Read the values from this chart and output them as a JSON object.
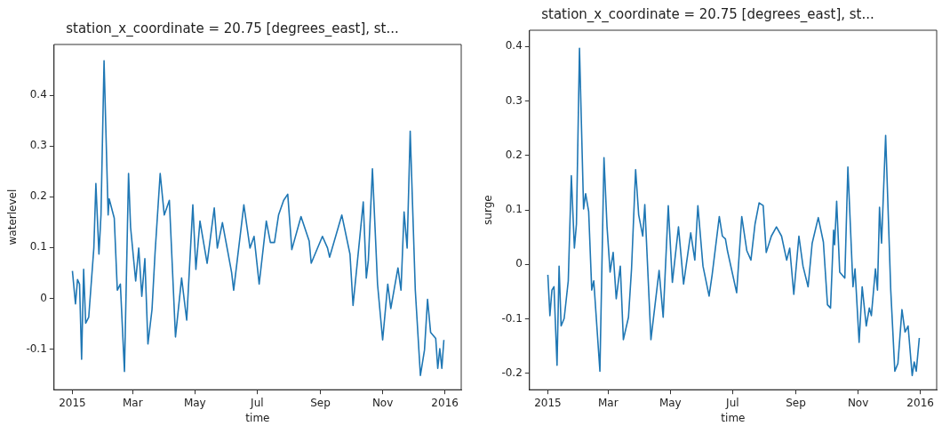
{
  "chart_data": [
    {
      "type": "line",
      "title": "station_x_coordinate = 20.75 [degrees_east], st...",
      "xlabel": "time",
      "ylabel": "waterlevel",
      "xlim": [
        "2014-12-14",
        "2016-01-17"
      ],
      "ylim": [
        -0.18,
        0.5
      ],
      "xticks": [
        {
          "value": "2015-01-01",
          "label": "2015"
        },
        {
          "value": "2015-03-01",
          "label": "Mar"
        },
        {
          "value": "2015-05-01",
          "label": "May"
        },
        {
          "value": "2015-07-01",
          "label": "Jul"
        },
        {
          "value": "2015-09-01",
          "label": "Sep"
        },
        {
          "value": "2015-11-01",
          "label": "Nov"
        },
        {
          "value": "2016-01-01",
          "label": "2016"
        }
      ],
      "yticks": [
        -0.1,
        0.0,
        0.1,
        0.2,
        0.3,
        0.4
      ],
      "grid": false,
      "legend": false,
      "marker": "none",
      "line_style": "solid",
      "series": [
        {
          "color": "#1f77b4",
          "x": [
            "2015-01-01",
            "2015-01-04",
            "2015-01-06",
            "2015-01-08",
            "2015-01-10",
            "2015-01-12",
            "2015-01-14",
            "2015-01-17",
            "2015-01-22",
            "2015-01-24",
            "2015-01-27",
            "2015-01-29",
            "2015-02-01",
            "2015-02-05",
            "2015-02-06",
            "2015-02-11",
            "2015-02-14",
            "2015-02-17",
            "2015-02-21",
            "2015-02-25",
            "2015-02-27",
            "2015-03-04",
            "2015-03-07",
            "2015-03-10",
            "2015-03-13",
            "2015-03-16",
            "2015-03-20",
            "2015-03-23",
            "2015-03-28",
            "2015-04-01",
            "2015-04-06",
            "2015-04-12",
            "2015-04-18",
            "2015-04-23",
            "2015-04-29",
            "2015-05-02",
            "2015-05-06",
            "2015-05-13",
            "2015-05-20",
            "2015-05-23",
            "2015-05-28",
            "2015-06-06",
            "2015-06-08",
            "2015-06-18",
            "2015-06-24",
            "2015-06-28",
            "2015-07-03",
            "2015-07-10",
            "2015-07-14",
            "2015-07-18",
            "2015-07-22",
            "2015-07-27",
            "2015-07-31",
            "2015-08-04",
            "2015-08-13",
            "2015-08-21",
            "2015-08-23",
            "2015-09-03",
            "2015-09-08",
            "2015-09-10",
            "2015-09-22",
            "2015-09-30",
            "2015-10-03",
            "2015-10-10",
            "2015-10-13",
            "2015-10-16",
            "2015-10-18",
            "2015-10-22",
            "2015-10-27",
            "2015-11-01",
            "2015-11-06",
            "2015-11-09",
            "2015-11-16",
            "2015-11-19",
            "2015-11-22",
            "2015-11-25",
            "2015-11-28",
            "2015-12-03",
            "2015-12-08",
            "2015-12-12",
            "2015-12-15",
            "2015-12-18",
            "2015-12-23",
            "2015-12-25",
            "2015-12-27",
            "2015-12-29",
            "2015-12-31"
          ],
          "values": [
            0.054,
            -0.011,
            0.037,
            0.028,
            -0.12,
            0.057,
            -0.049,
            -0.037,
            0.099,
            0.226,
            0.087,
            0.164,
            0.468,
            0.164,
            0.196,
            0.158,
            0.016,
            0.028,
            -0.144,
            0.246,
            0.14,
            0.034,
            0.099,
            0.004,
            0.078,
            -0.09,
            -0.022,
            0.09,
            0.246,
            0.164,
            0.193,
            -0.076,
            0.04,
            -0.043,
            0.184,
            0.057,
            0.152,
            0.069,
            0.178,
            0.099,
            0.149,
            0.051,
            0.016,
            0.184,
            0.099,
            0.122,
            0.028,
            0.152,
            0.11,
            0.11,
            0.164,
            0.193,
            0.205,
            0.096,
            0.161,
            0.113,
            0.069,
            0.122,
            0.099,
            0.081,
            0.164,
            0.087,
            -0.014,
            0.128,
            0.19,
            0.04,
            0.075,
            0.255,
            0.028,
            -0.082,
            0.028,
            -0.02,
            0.06,
            0.016,
            0.17,
            0.099,
            0.329,
            0.016,
            -0.152,
            -0.102,
            -0.002,
            -0.067,
            -0.079,
            -0.138,
            -0.099,
            -0.138,
            -0.082
          ]
        }
      ]
    },
    {
      "type": "line",
      "title": "station_x_coordinate = 20.75 [degrees_east], st...",
      "xlabel": "time",
      "ylabel": "surge",
      "xlim": [
        "2014-12-14",
        "2016-01-17"
      ],
      "ylim": [
        -0.23,
        0.43
      ],
      "xticks": [
        {
          "value": "2015-01-01",
          "label": "2015"
        },
        {
          "value": "2015-03-01",
          "label": "Mar"
        },
        {
          "value": "2015-05-01",
          "label": "May"
        },
        {
          "value": "2015-07-01",
          "label": "Jul"
        },
        {
          "value": "2015-09-01",
          "label": "Sep"
        },
        {
          "value": "2015-11-01",
          "label": "Nov"
        },
        {
          "value": "2016-01-01",
          "label": "2016"
        }
      ],
      "yticks": [
        -0.2,
        -0.1,
        0.0,
        0.1,
        0.2,
        0.3,
        0.4
      ],
      "grid": false,
      "legend": false,
      "marker": "none",
      "line_style": "solid",
      "series": [
        {
          "color": "#1f77b4",
          "x": [
            "2015-01-01",
            "2015-01-03",
            "2015-01-05",
            "2015-01-07",
            "2015-01-10",
            "2015-01-12",
            "2015-01-14",
            "2015-01-17",
            "2015-01-21",
            "2015-01-24",
            "2015-01-27",
            "2015-01-29",
            "2015-02-01",
            "2015-02-05",
            "2015-02-07",
            "2015-02-10",
            "2015-02-13",
            "2015-02-15",
            "2015-02-21",
            "2015-02-25",
            "2015-02-28",
            "2015-03-03",
            "2015-03-06",
            "2015-03-09",
            "2015-03-13",
            "2015-03-16",
            "2015-03-21",
            "2015-03-24",
            "2015-03-28",
            "2015-03-31",
            "2015-04-04",
            "2015-04-06",
            "2015-04-12",
            "2015-04-20",
            "2015-04-24",
            "2015-04-29",
            "2015-05-03",
            "2015-05-09",
            "2015-05-14",
            "2015-05-21",
            "2015-05-25",
            "2015-05-28",
            "2015-06-02",
            "2015-06-08",
            "2015-06-11",
            "2015-06-18",
            "2015-06-21",
            "2015-06-24",
            "2015-06-26",
            "2015-07-05",
            "2015-07-10",
            "2015-07-15",
            "2015-07-19",
            "2015-07-23",
            "2015-07-27",
            "2015-07-31",
            "2015-08-03",
            "2015-08-08",
            "2015-08-13",
            "2015-08-18",
            "2015-08-23",
            "2015-08-26",
            "2015-08-30",
            "2015-09-04",
            "2015-09-08",
            "2015-09-13",
            "2015-09-17",
            "2015-09-23",
            "2015-09-28",
            "2015-10-02",
            "2015-10-05",
            "2015-10-08",
            "2015-10-09",
            "2015-10-11",
            "2015-10-14",
            "2015-10-19",
            "2015-10-22",
            "2015-10-27",
            "2015-10-29",
            "2015-11-02",
            "2015-11-05",
            "2015-11-09",
            "2015-11-12",
            "2015-11-14",
            "2015-11-18",
            "2015-11-20",
            "2015-11-22",
            "2015-11-24",
            "2015-11-28",
            "2015-12-03",
            "2015-12-07",
            "2015-12-10",
            "2015-12-14",
            "2015-12-17",
            "2015-12-20",
            "2015-12-24",
            "2015-12-26",
            "2015-12-28",
            "2015-12-31"
          ],
          "values": [
            -0.019,
            -0.094,
            -0.047,
            -0.041,
            -0.185,
            -0.003,
            -0.113,
            -0.099,
            -0.03,
            0.163,
            0.03,
            0.074,
            0.397,
            0.102,
            0.13,
            0.097,
            -0.047,
            -0.03,
            -0.196,
            0.196,
            0.069,
            -0.014,
            0.022,
            -0.063,
            -0.003,
            -0.138,
            -0.097,
            -0.008,
            0.174,
            0.091,
            0.052,
            0.11,
            -0.138,
            -0.011,
            -0.097,
            0.108,
            -0.033,
            0.069,
            -0.036,
            0.058,
            0.008,
            0.108,
            -0.003,
            -0.058,
            -0.019,
            0.088,
            0.052,
            0.047,
            0.025,
            -0.052,
            0.088,
            0.025,
            0.008,
            0.074,
            0.113,
            0.108,
            0.022,
            0.052,
            0.069,
            0.052,
            0.008,
            0.03,
            -0.055,
            0.052,
            -0.003,
            -0.041,
            0.039,
            0.086,
            0.041,
            -0.074,
            -0.08,
            0.063,
            0.036,
            0.116,
            -0.014,
            -0.025,
            0.179,
            -0.041,
            -0.008,
            -0.143,
            -0.041,
            -0.113,
            -0.08,
            -0.094,
            -0.008,
            -0.047,
            0.105,
            0.039,
            0.237,
            -0.047,
            -0.196,
            -0.182,
            -0.083,
            -0.124,
            -0.113,
            -0.204,
            -0.179,
            -0.196,
            -0.135
          ]
        }
      ]
    }
  ]
}
